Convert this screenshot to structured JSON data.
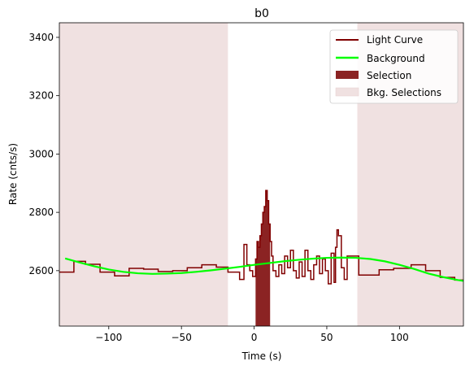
{
  "chart_data": {
    "type": "line",
    "title": "b0",
    "xlabel": "Time (s)",
    "ylabel": "Rate (cnts/s)",
    "xlim": [
      -134,
      144
    ],
    "ylim": [
      2410,
      3450
    ],
    "xticks": [
      -100,
      -50,
      0,
      50,
      100
    ],
    "yticks": [
      2600,
      2800,
      3000,
      3200,
      3400
    ],
    "grid": false,
    "legend_position": "top-right",
    "legend": [
      "Light Curve",
      "Background",
      "Selection",
      "Bkg. Selections"
    ],
    "colors": {
      "light_curve": "#800000",
      "background": "#00ff00",
      "selection": "#8b2323",
      "bkg_selection": "#f0e1e1"
    },
    "light_curve": {
      "x": [
        -134,
        -124,
        -124,
        -116,
        -116,
        -106,
        -106,
        -96,
        -96,
        -86,
        -86,
        -76,
        -76,
        -66,
        -66,
        -56,
        -56,
        -46,
        -46,
        -36,
        -36,
        -26,
        -26,
        -18,
        -18,
        -10,
        -10,
        -7,
        -7,
        -5,
        -5,
        -3,
        -3,
        -1,
        -1,
        1,
        1,
        2,
        2,
        3,
        3,
        4,
        4,
        5,
        5,
        6,
        6,
        7,
        7,
        8,
        8,
        9,
        9,
        10,
        10,
        11,
        11,
        12,
        12,
        13,
        13,
        15,
        15,
        17,
        17,
        19,
        19,
        21,
        21,
        23,
        23,
        25,
        25,
        27,
        27,
        29,
        29,
        31,
        31,
        33,
        33,
        35,
        35,
        37,
        37,
        39,
        39,
        41,
        41,
        43,
        43,
        45,
        45,
        47,
        47,
        49,
        49,
        51,
        51,
        53,
        53,
        55,
        55,
        56,
        56,
        57,
        57,
        58,
        58,
        60,
        60,
        62,
        62,
        64,
        64,
        72,
        72,
        86,
        86,
        96,
        96,
        108,
        108,
        118,
        118,
        128,
        128,
        138,
        138,
        144
      ],
      "y": [
        2595,
        2595,
        2632,
        2632,
        2622,
        2622,
        2595,
        2595,
        2582,
        2582,
        2608,
        2608,
        2605,
        2605,
        2597,
        2597,
        2600,
        2600,
        2610,
        2610,
        2620,
        2620,
        2612,
        2612,
        2595,
        2595,
        2570,
        2570,
        2690,
        2690,
        2620,
        2620,
        2600,
        2600,
        2580,
        2580,
        2640,
        2640,
        2700,
        2700,
        2680,
        2680,
        2720,
        2720,
        2760,
        2760,
        2800,
        2800,
        2820,
        2820,
        2875,
        2875,
        2840,
        2840,
        2760,
        2760,
        2700,
        2700,
        2650,
        2650,
        2600,
        2600,
        2580,
        2580,
        2620,
        2620,
        2590,
        2590,
        2650,
        2650,
        2610,
        2610,
        2670,
        2670,
        2600,
        2600,
        2575,
        2575,
        2630,
        2630,
        2580,
        2580,
        2670,
        2670,
        2600,
        2600,
        2570,
        2570,
        2620,
        2620,
        2650,
        2650,
        2590,
        2590,
        2640,
        2640,
        2600,
        2600,
        2555,
        2555,
        2660,
        2660,
        2560,
        2560,
        2680,
        2680,
        2740,
        2740,
        2720,
        2720,
        2610,
        2610,
        2570,
        2570,
        2650,
        2650,
        2585,
        2585,
        2603,
        2603,
        2608,
        2608,
        2620,
        2620,
        2600,
        2600,
        2577,
        2577,
        2568,
        2568
      ]
    },
    "background": {
      "x": [
        -130,
        -120,
        -110,
        -100,
        -90,
        -80,
        -70,
        -60,
        -50,
        -40,
        -30,
        -20,
        -10,
        0,
        10,
        20,
        30,
        40,
        50,
        60,
        70,
        80,
        90,
        100,
        110,
        120,
        130,
        140,
        144
      ],
      "y": [
        2642,
        2628,
        2615,
        2604,
        2596,
        2591,
        2589,
        2590,
        2592,
        2596,
        2601,
        2607,
        2613,
        2620,
        2626,
        2632,
        2637,
        2641,
        2644,
        2645,
        2644,
        2640,
        2632,
        2620,
        2606,
        2590,
        2578,
        2568,
        2565
      ]
    },
    "selection": {
      "x_start": 0,
      "x_end": 11
    },
    "bkg_selections": [
      {
        "x_start": -134,
        "x_end": -18
      },
      {
        "x_start": 71,
        "x_end": 144
      }
    ]
  }
}
